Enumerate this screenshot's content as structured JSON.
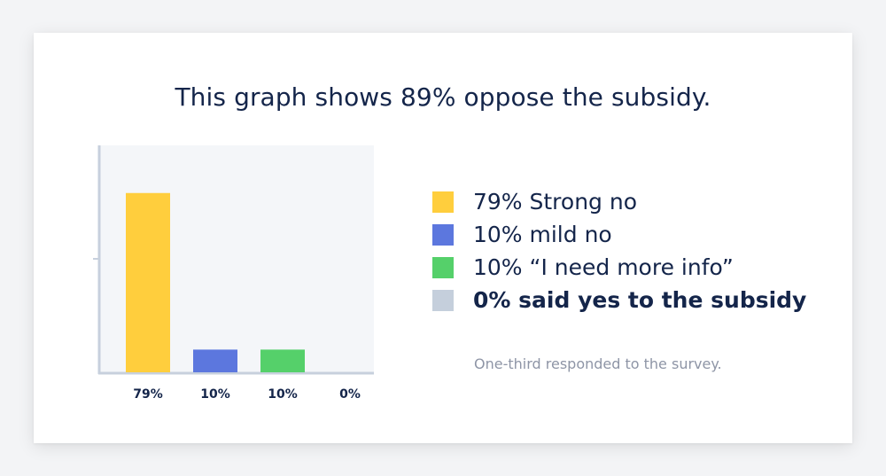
{
  "title": "This graph shows 89% oppose the subsidy.",
  "legend": [
    {
      "label": "79% Strong no",
      "color": "#ffce3d",
      "bold": false
    },
    {
      "label": "10% mild no",
      "color": "#5c77de",
      "bold": false
    },
    {
      "label": "10% “I need more info”",
      "color": "#55d06a",
      "bold": false
    },
    {
      "label": "0% said yes to the subsidy",
      "color": "#c5cfdc",
      "bold": true
    }
  ],
  "footnote": "One-third responded to the survey.",
  "chart_data": {
    "type": "bar",
    "title": "This graph shows 89% oppose the subsidy.",
    "xlabel": "",
    "ylabel": "",
    "ylim": [
      0,
      100
    ],
    "grid": false,
    "legend_position": "right",
    "categories": [
      "Strong no",
      "mild no",
      "I need more info",
      "said yes to the subsidy"
    ],
    "values": [
      79,
      10,
      10,
      0
    ],
    "labels": [
      "79%",
      "10%",
      "10%",
      "0%"
    ],
    "colors": [
      "#ffce3d",
      "#5c77de",
      "#55d06a",
      "#c5cfdc"
    ],
    "plot_background": "#f4f6f9",
    "axis_color": "#c7d0dd"
  }
}
